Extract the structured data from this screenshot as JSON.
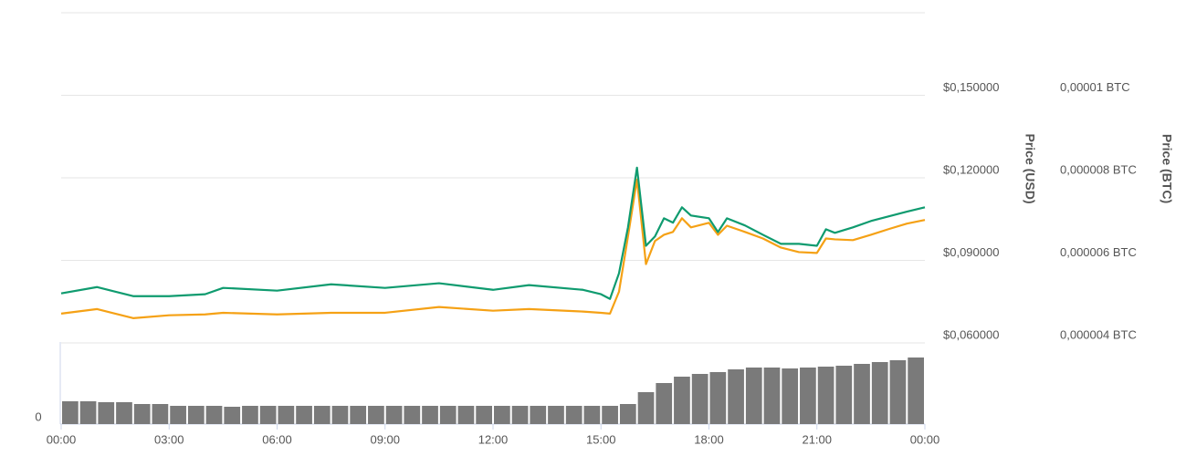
{
  "chart_data": [
    {
      "type": "line",
      "x": [
        0,
        1,
        2,
        3,
        4,
        4.5,
        6,
        7.5,
        9,
        10.5,
        12,
        13,
        14.5,
        15,
        15.25,
        15.5,
        15.75,
        16,
        16.25,
        16.5,
        16.75,
        17,
        17.25,
        17.5,
        18,
        18.25,
        18.5,
        19,
        19.5,
        20,
        20.5,
        21,
        21.25,
        21.5,
        22,
        22.5,
        23,
        23.5,
        24
      ],
      "xlim": [
        0,
        24
      ],
      "ylabel": "Price (USD)",
      "y2label": "Price (BTC)",
      "ylim": [
        0.06,
        0.18
      ],
      "yticks": [
        {
          "value": 0.06,
          "label": "$0,060000"
        },
        {
          "value": 0.09,
          "label": "$0,090000"
        },
        {
          "value": 0.12,
          "label": "$0,120000"
        },
        {
          "value": 0.15,
          "label": "$0,150000"
        }
      ],
      "y2lim": [
        4e-06,
        1.2e-05
      ],
      "y2ticks": [
        {
          "value": 4e-06,
          "label": "0,000004 BTC"
        },
        {
          "value": 6e-06,
          "label": "0,000006 BTC"
        },
        {
          "value": 8e-06,
          "label": "0,000008 BTC"
        },
        {
          "value": 1e-05,
          "label": "0,00001 BTC"
        }
      ],
      "grid": true,
      "series": [
        {
          "name": "Price (USD)",
          "color": "#0f9b6f",
          "values": [
            0.078,
            0.0803,
            0.077,
            0.077,
            0.0777,
            0.08,
            0.079,
            0.0813,
            0.08,
            0.0817,
            0.0793,
            0.081,
            0.0793,
            0.0777,
            0.076,
            0.0853,
            0.102,
            0.1237,
            0.0953,
            0.0987,
            0.1053,
            0.1037,
            0.1093,
            0.1063,
            0.1053,
            0.1003,
            0.1053,
            0.1027,
            0.0993,
            0.096,
            0.096,
            0.0953,
            0.1013,
            0.1,
            0.102,
            0.1043,
            0.106,
            0.1077,
            0.1093
          ]
        },
        {
          "name": "Price (BTC)",
          "color": "#f5a115",
          "axis": "y2",
          "values": [
            4.71e-06,
            4.82e-06,
            4.6e-06,
            4.67e-06,
            4.69e-06,
            4.73e-06,
            4.69e-06,
            4.73e-06,
            4.73e-06,
            4.87e-06,
            4.78e-06,
            4.82e-06,
            4.76e-06,
            4.73e-06,
            4.71e-06,
            5.24e-06,
            6.58e-06,
            7.96e-06,
            5.91e-06,
            6.47e-06,
            6.62e-06,
            6.69e-06,
            7.02e-06,
            6.8e-06,
            6.91e-06,
            6.62e-06,
            6.84e-06,
            6.69e-06,
            6.53e-06,
            6.31e-06,
            6.2e-06,
            6.18e-06,
            6.53e-06,
            6.51e-06,
            6.49e-06,
            6.62e-06,
            6.76e-06,
            6.89e-06,
            6.98e-06
          ]
        }
      ]
    },
    {
      "type": "bar",
      "x": [
        0,
        0.5,
        1,
        1.5,
        2,
        2.5,
        3,
        3.5,
        4,
        4.5,
        5,
        5.5,
        6,
        6.5,
        7,
        7.5,
        8,
        8.5,
        9,
        9.5,
        10,
        10.5,
        11,
        11.5,
        12,
        12.5,
        13,
        13.5,
        14,
        14.5,
        15,
        15.5,
        16,
        16.5,
        17,
        17.5,
        18,
        18.5,
        19,
        19.5,
        20,
        20.5,
        21,
        21.5,
        22,
        22.5,
        23,
        23.5
      ],
      "xlim": [
        0,
        24
      ],
      "xticks": [
        {
          "value": 0,
          "label": "00:00"
        },
        {
          "value": 3,
          "label": "03:00"
        },
        {
          "value": 6,
          "label": "06:00"
        },
        {
          "value": 9,
          "label": "09:00"
        },
        {
          "value": 12,
          "label": "12:00"
        },
        {
          "value": 15,
          "label": "15:00"
        },
        {
          "value": 18,
          "label": "18:00"
        },
        {
          "value": 21,
          "label": "21:00"
        },
        {
          "value": 24,
          "label": "00:00"
        }
      ],
      "ylim": [
        0,
        90
      ],
      "yticks": [
        0
      ],
      "color": "#7a7a7a",
      "values": [
        25,
        25,
        24,
        24,
        22,
        22,
        20,
        20,
        20,
        19,
        20,
        20,
        20,
        20,
        20,
        20,
        20,
        20,
        20,
        20,
        20,
        20,
        20,
        20,
        20,
        20,
        20,
        20,
        20,
        20,
        20,
        22,
        35,
        45,
        52,
        55,
        57,
        60,
        62,
        62,
        61,
        62,
        63,
        64,
        66,
        68,
        70,
        73
      ]
    }
  ]
}
